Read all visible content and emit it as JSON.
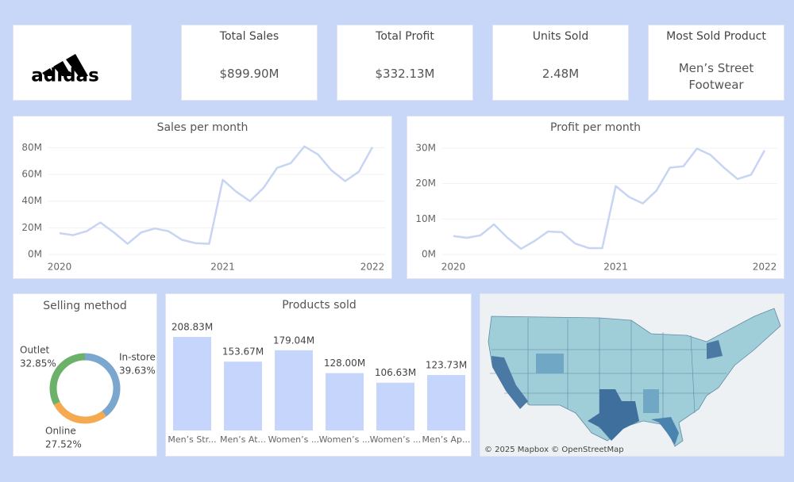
{
  "logo": "adidas",
  "kpis": [
    {
      "label": "Total Sales",
      "value": "$899.90M"
    },
    {
      "label": "Total Profit",
      "value": "$332.13M"
    },
    {
      "label": "Units Sold",
      "value": "2.48M"
    },
    {
      "label": "Most Sold Product",
      "value": "Men’s Street Footwear"
    }
  ],
  "chart_data": [
    {
      "type": "line",
      "title": "Sales per month",
      "color": "#c8d4f4",
      "categories": [
        "2020",
        null,
        null,
        null,
        null,
        null,
        null,
        null,
        null,
        null,
        null,
        null,
        "2021",
        null,
        null,
        null,
        null,
        null,
        null,
        null,
        null,
        null,
        null,
        "2022"
      ],
      "values": [
        16,
        14.5,
        17.5,
        24,
        16.5,
        8,
        16.5,
        19.5,
        17.5,
        11,
        8.5,
        8,
        56,
        47,
        40,
        50,
        65,
        68.5,
        81,
        75,
        63,
        55,
        62,
        80.5
      ],
      "ylim": [
        0,
        85
      ],
      "yticks": [
        {
          "value": 0,
          "label": "0M"
        },
        {
          "value": 20,
          "label": "20M"
        },
        {
          "value": 40,
          "label": "40M"
        },
        {
          "value": 60,
          "label": "60M"
        },
        {
          "value": 80,
          "label": "80M"
        }
      ],
      "grid": true
    },
    {
      "type": "line",
      "title": "Profit per month",
      "color": "#c8d4f4",
      "categories": [
        "2020",
        null,
        null,
        null,
        null,
        null,
        null,
        null,
        null,
        null,
        null,
        null,
        "2021",
        null,
        null,
        null,
        null,
        null,
        null,
        null,
        null,
        null,
        null,
        "2022"
      ],
      "values": [
        5.2,
        4.7,
        5.4,
        8.5,
        4.7,
        1.6,
        3.8,
        6.5,
        6.3,
        3.1,
        1.8,
        1.8,
        19.3,
        16.2,
        14.4,
        18,
        24.5,
        24.9,
        29.9,
        28.1,
        24.5,
        21.3,
        22.5,
        29.4
      ],
      "ylim": [
        0,
        32
      ],
      "yticks": [
        {
          "value": 0,
          "label": "0M"
        },
        {
          "value": 10,
          "label": "10M"
        },
        {
          "value": 20,
          "label": "20M"
        },
        {
          "value": 30,
          "label": "30M"
        }
      ],
      "grid": true
    },
    {
      "type": "donut",
      "title": "Selling method",
      "categories": [
        "In-store",
        "Online",
        "Outlet"
      ],
      "values": [
        39.63,
        27.52,
        32.85
      ],
      "value_labels": [
        "39.63%",
        "27.52%",
        "32.85%"
      ],
      "colors": [
        "#7ba7cf",
        "#f5aa52",
        "#6cb16a"
      ]
    },
    {
      "type": "bar",
      "title": "Products sold",
      "color": "#c6d5fb",
      "categories": [
        "Men’s Str...",
        "Men’s At...",
        "Women’s ...",
        "Women’s ...",
        "Women’s ...",
        "Men’s Ap..."
      ],
      "values": [
        208.83,
        153.67,
        179.04,
        128.0,
        106.63,
        123.73
      ],
      "value_labels": [
        "208.83M",
        "153.67M",
        "179.04M",
        "128.00M",
        "106.63M",
        "123.73M"
      ]
    }
  ],
  "map": {
    "attribution": "© 2025 Mapbox © OpenStreetMap"
  }
}
